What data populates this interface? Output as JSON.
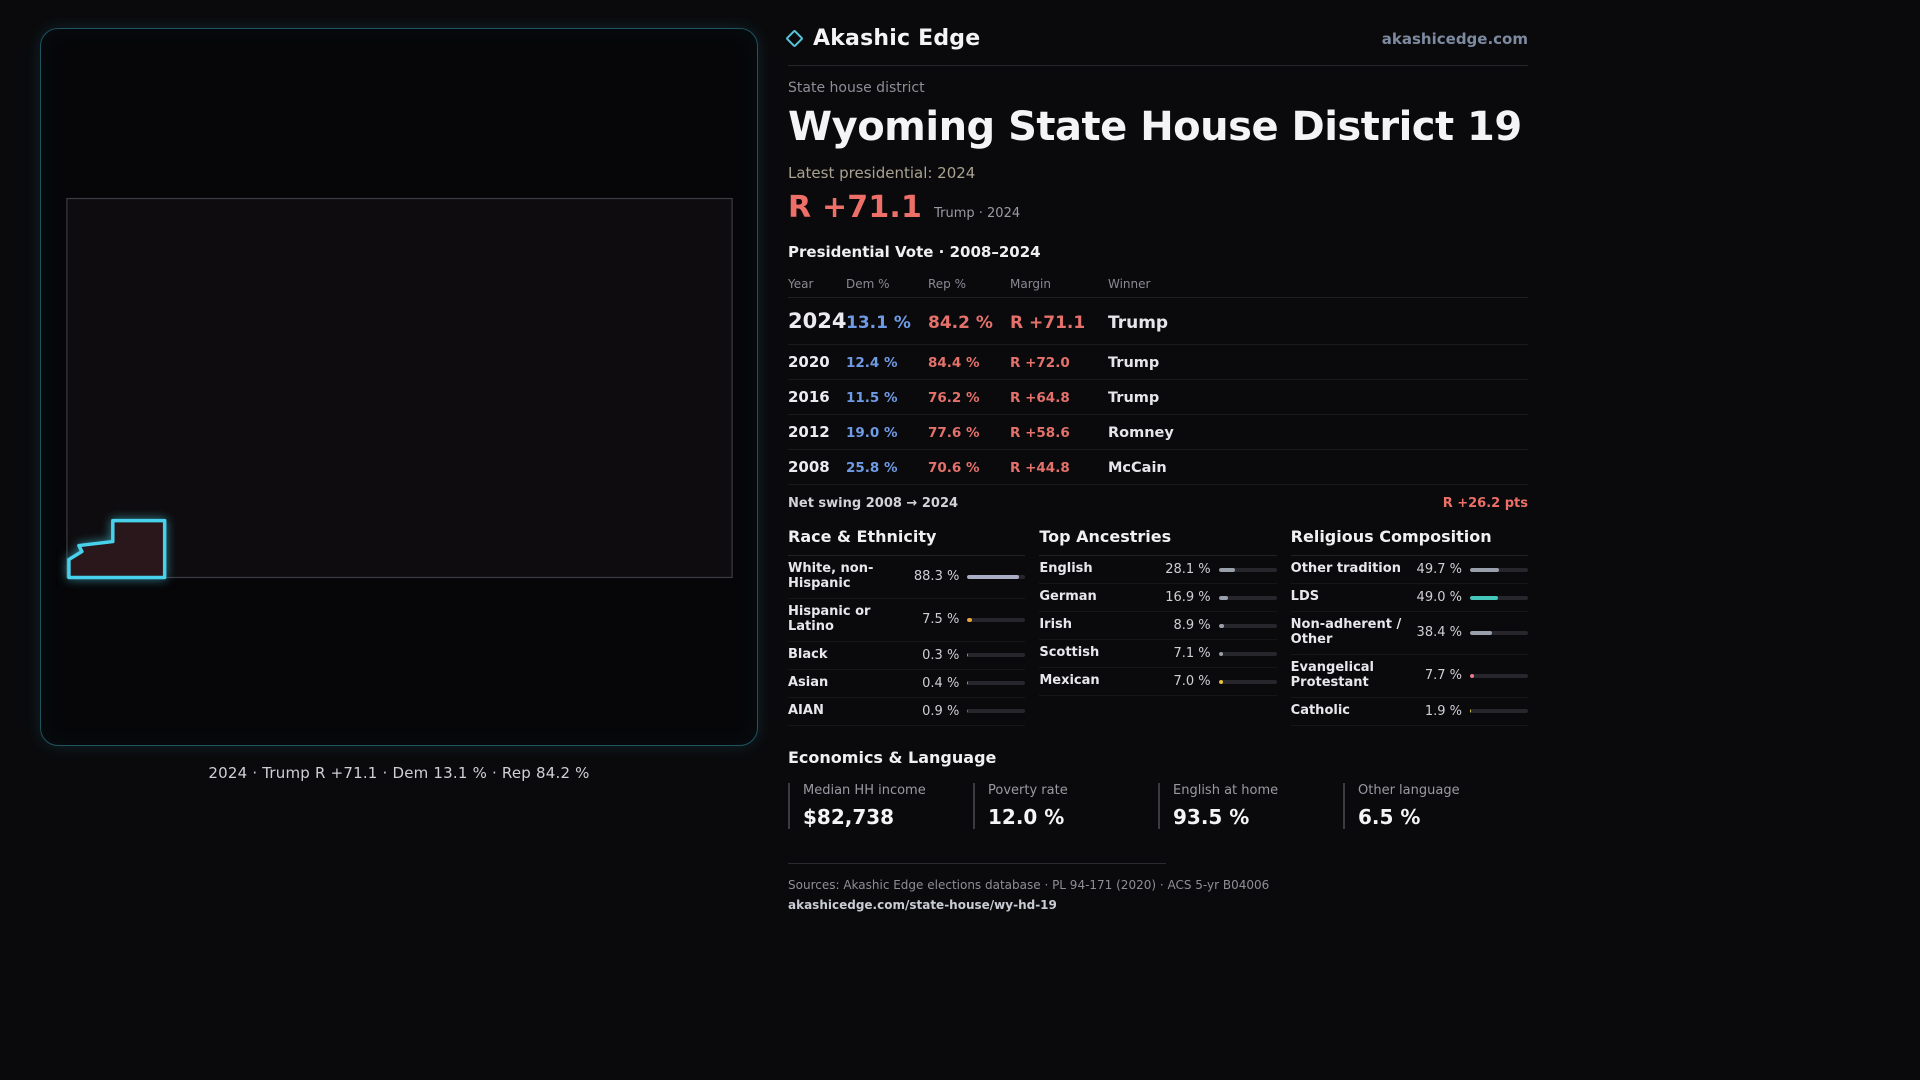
{
  "header": {
    "brand": "Akashic Edge",
    "site": "akashicedge.com"
  },
  "map": {
    "caption": "2024 · Trump R +71.1 · Dem 13.1 % · Rep 84.2 %",
    "outline_color": "#3c3c44",
    "district_stroke": "#48d1eb",
    "district_fill": "#2a171b"
  },
  "district": {
    "kicker": "State house district",
    "title": "Wyoming State House District 19",
    "latest_label": "Latest presidential: 2024",
    "margin_big": "R +71.1",
    "margin_context": "Trump · 2024",
    "accent_red": "#ee6f67",
    "accent_blue": "#6f9be4"
  },
  "vote_table": {
    "title": "Presidential Vote · 2008–2024",
    "columns": {
      "year": "Year",
      "dem": "Dem %",
      "rep": "Rep %",
      "margin": "Margin",
      "winner": "Winner"
    },
    "rows": [
      {
        "year": "2024",
        "dem": "13.1 %",
        "rep": "84.2 %",
        "margin": "R +71.1",
        "winner": "Trump"
      },
      {
        "year": "2020",
        "dem": "12.4 %",
        "rep": "84.4 %",
        "margin": "R +72.0",
        "winner": "Trump"
      },
      {
        "year": "2016",
        "dem": "11.5 %",
        "rep": "76.2 %",
        "margin": "R +64.8",
        "winner": "Trump"
      },
      {
        "year": "2012",
        "dem": "19.0 %",
        "rep": "77.6 %",
        "margin": "R +58.6",
        "winner": "Romney"
      },
      {
        "year": "2008",
        "dem": "25.8 %",
        "rep": "70.6 %",
        "margin": "R +44.8",
        "winner": "McCain"
      }
    ],
    "net_swing_label": "Net swing 2008 → 2024",
    "net_swing_value": "R +26.2 pts"
  },
  "demographics": {
    "race": {
      "title": "Race & Ethnicity",
      "items": [
        {
          "label": "White, non-Hispanic",
          "value": "88.3 %",
          "pct": 88.3,
          "color": "#a9aec6"
        },
        {
          "label": "Hispanic or Latino",
          "value": "7.5 %",
          "pct": 7.5,
          "color": "#e8a33d"
        },
        {
          "label": "Black",
          "value": "0.3 %",
          "pct": 0.3,
          "color": "#8a8f98"
        },
        {
          "label": "Asian",
          "value": "0.4 %",
          "pct": 0.4,
          "color": "#8a8f98"
        },
        {
          "label": "AIAN",
          "value": "0.9 %",
          "pct": 0.9,
          "color": "#a5524a"
        }
      ]
    },
    "ancestries": {
      "title": "Top Ancestries",
      "items": [
        {
          "label": "English",
          "value": "28.1 %",
          "pct": 28.1,
          "color": "#9aa0ab"
        },
        {
          "label": "German",
          "value": "16.9 %",
          "pct": 16.9,
          "color": "#9aa0ab"
        },
        {
          "label": "Irish",
          "value": "8.9 %",
          "pct": 8.9,
          "color": "#9aa0ab"
        },
        {
          "label": "Scottish",
          "value": "7.1 %",
          "pct": 7.1,
          "color": "#9aa0ab"
        },
        {
          "label": "Mexican",
          "value": "7.0 %",
          "pct": 7.0,
          "color": "#e8c23d"
        }
      ]
    },
    "religion": {
      "title": "Religious Composition",
      "items": [
        {
          "label": "Other tradition",
          "value": "49.7 %",
          "pct": 49.7,
          "color": "#9aa0ab"
        },
        {
          "label": "LDS",
          "value": "49.0 %",
          "pct": 49.0,
          "color": "#45c8bb"
        },
        {
          "label": "Non-adherent / Other",
          "value": "38.4 %",
          "pct": 38.4,
          "color": "#9aa0ab"
        },
        {
          "label": "Evangelical Protestant",
          "value": "7.7 %",
          "pct": 7.7,
          "color": "#e87a8a"
        },
        {
          "label": "Catholic",
          "value": "1.9 %",
          "pct": 1.9,
          "color": "#d8c24a"
        }
      ]
    }
  },
  "economics": {
    "title": "Economics & Language",
    "stats": [
      {
        "label": "Median HH income",
        "value": "$82,738"
      },
      {
        "label": "Poverty rate",
        "value": "12.0 %"
      },
      {
        "label": "English at home",
        "value": "93.5 %"
      },
      {
        "label": "Other language",
        "value": "6.5 %"
      }
    ]
  },
  "footer": {
    "sources": "Sources: Akashic Edge elections database · PL 94-171 (2020) · ACS 5-yr B04006",
    "permalink": "akashicedge.com/state-house/wy-hd-19"
  }
}
